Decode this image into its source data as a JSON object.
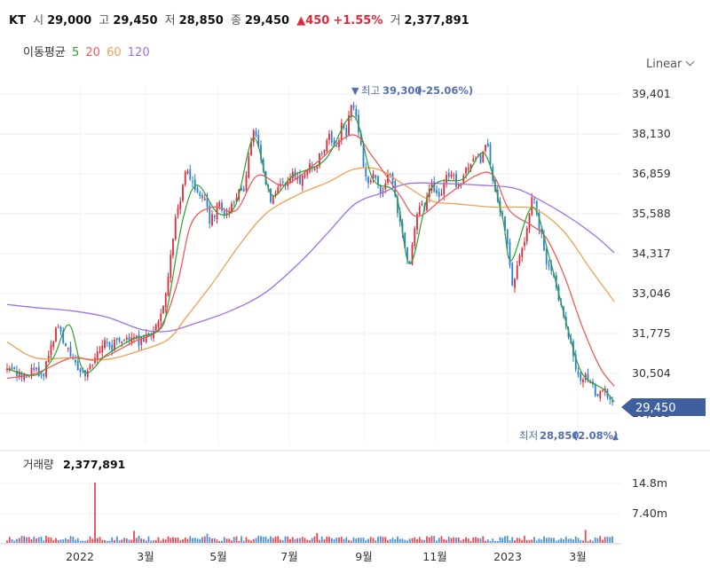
{
  "header": {
    "symbol": "KT",
    "open_label": "시",
    "open": "29,000",
    "high_label": "고",
    "high": "29,450",
    "low_label": "저",
    "low": "28,850",
    "close_label": "종",
    "close": "29,450",
    "change": "▲450",
    "change_pct": "+1.55%",
    "volume_label": "거",
    "volume": "2,377,891"
  },
  "moving_average": {
    "label": "이동평균",
    "periods": [
      {
        "value": "5",
        "color": "#2ca02c"
      },
      {
        "value": "20",
        "color": "#ef5a5a"
      },
      {
        "value": "60",
        "color": "#f0a050"
      },
      {
        "value": "120",
        "color": "#a070e8"
      }
    ]
  },
  "scale_selector": "Linear",
  "colors": {
    "up": "#e0293a",
    "down": "#2a7fd4",
    "badge": "#3f5f9f",
    "annotation": "#5470b0"
  },
  "chart_data": {
    "type": "candlestick",
    "x_ticks": [
      "2022",
      "3월",
      "5월",
      "7월",
      "9월",
      "11월",
      "2023",
      "3월"
    ],
    "y_ticks": [
      "39,401",
      "38,130",
      "36,859",
      "35,588",
      "34,317",
      "33,046",
      "31,775",
      "30,504",
      "29,233"
    ],
    "ylim": [
      29233,
      39401
    ],
    "close_marker": "29,450",
    "high_annotation": {
      "label": "최고",
      "value": "39,300",
      "pct": "(-25.06%)"
    },
    "low_annotation": {
      "label": "최저",
      "value": "28,850",
      "pct": "(2.08%)"
    },
    "close_trend": [
      [
        0,
        30650
      ],
      [
        6,
        30500
      ],
      [
        12,
        30800
      ],
      [
        18,
        30550
      ],
      [
        24,
        30400
      ],
      [
        30,
        30350
      ],
      [
        36,
        30700
      ],
      [
        42,
        30600
      ],
      [
        48,
        30300
      ],
      [
        52,
        30850
      ],
      [
        58,
        31400
      ],
      [
        62,
        31800
      ],
      [
        66,
        32100
      ],
      [
        72,
        31500
      ],
      [
        78,
        31200
      ],
      [
        84,
        30800
      ],
      [
        90,
        30500
      ],
      [
        96,
        30400
      ],
      [
        102,
        30650
      ],
      [
        108,
        31000
      ],
      [
        114,
        31300
      ],
      [
        120,
        31600
      ],
      [
        126,
        31200
      ],
      [
        132,
        31700
      ],
      [
        138,
        31450
      ],
      [
        144,
        31600
      ],
      [
        150,
        31750
      ],
      [
        156,
        31500
      ],
      [
        162,
        31600
      ],
      [
        168,
        31700
      ],
      [
        174,
        31800
      ],
      [
        180,
        32300
      ],
      [
        186,
        32900
      ],
      [
        190,
        33800
      ],
      [
        194,
        34600
      ],
      [
        198,
        35500
      ],
      [
        202,
        35800
      ],
      [
        206,
        36600
      ],
      [
        210,
        36900
      ],
      [
        214,
        36700
      ],
      [
        218,
        36400
      ],
      [
        222,
        36200
      ],
      [
        226,
        36000
      ],
      [
        230,
        36300
      ],
      [
        236,
        35300
      ],
      [
        242,
        35600
      ],
      [
        248,
        35900
      ],
      [
        254,
        35500
      ],
      [
        260,
        35800
      ],
      [
        266,
        36100
      ],
      [
        270,
        36400
      ],
      [
        274,
        36100
      ],
      [
        278,
        36900
      ],
      [
        282,
        37700
      ],
      [
        286,
        38300
      ],
      [
        290,
        37900
      ],
      [
        294,
        37400
      ],
      [
        298,
        36800
      ],
      [
        302,
        36300
      ],
      [
        306,
        36000
      ],
      [
        312,
        36300
      ],
      [
        318,
        36700
      ],
      [
        324,
        36500
      ],
      [
        330,
        36900
      ],
      [
        336,
        36600
      ],
      [
        342,
        36800
      ],
      [
        348,
        37100
      ],
      [
        354,
        37000
      ],
      [
        360,
        37400
      ],
      [
        366,
        37600
      ],
      [
        370,
        38100
      ],
      [
        374,
        37800
      ],
      [
        378,
        37800
      ],
      [
        382,
        37900
      ],
      [
        386,
        38600
      ],
      [
        390,
        38000
      ],
      [
        394,
        39000
      ],
      [
        398,
        39100
      ],
      [
        402,
        38500
      ],
      [
        406,
        37800
      ],
      [
        410,
        37100
      ],
      [
        414,
        36500
      ],
      [
        418,
        36700
      ],
      [
        422,
        37000
      ],
      [
        426,
        36500
      ],
      [
        430,
        36200
      ],
      [
        434,
        36500
      ],
      [
        438,
        36800
      ],
      [
        442,
        36600
      ],
      [
        446,
        36000
      ],
      [
        450,
        35400
      ],
      [
        454,
        35000
      ],
      [
        458,
        34200
      ],
      [
        462,
        34000
      ],
      [
        466,
        35000
      ],
      [
        470,
        35700
      ],
      [
        474,
        35900
      ],
      [
        478,
        35700
      ],
      [
        482,
        36300
      ],
      [
        486,
        36600
      ],
      [
        490,
        36300
      ],
      [
        494,
        36000
      ],
      [
        498,
        36400
      ],
      [
        502,
        36800
      ],
      [
        506,
        36700
      ],
      [
        510,
        36900
      ],
      [
        514,
        36500
      ],
      [
        518,
        36400
      ],
      [
        522,
        36700
      ],
      [
        526,
        37000
      ],
      [
        530,
        37200
      ],
      [
        534,
        37500
      ],
      [
        538,
        37400
      ],
      [
        542,
        37300
      ],
      [
        546,
        37700
      ],
      [
        550,
        37600
      ],
      [
        554,
        37000
      ],
      [
        558,
        36200
      ],
      [
        562,
        35800
      ],
      [
        566,
        35600
      ],
      [
        570,
        35000
      ],
      [
        574,
        34300
      ],
      [
        576,
        33200
      ],
      [
        580,
        33600
      ],
      [
        584,
        34000
      ],
      [
        588,
        34600
      ],
      [
        592,
        34800
      ],
      [
        596,
        35400
      ],
      [
        600,
        36200
      ],
      [
        604,
        35700
      ],
      [
        608,
        35100
      ],
      [
        612,
        34700
      ],
      [
        616,
        34000
      ],
      [
        620,
        33800
      ],
      [
        624,
        33600
      ],
      [
        628,
        33100
      ],
      [
        632,
        32700
      ],
      [
        636,
        32300
      ],
      [
        640,
        31700
      ],
      [
        644,
        31300
      ],
      [
        648,
        30700
      ],
      [
        652,
        30400
      ],
      [
        656,
        30200
      ],
      [
        660,
        30450
      ],
      [
        664,
        30300
      ],
      [
        668,
        30100
      ],
      [
        672,
        29700
      ],
      [
        676,
        29800
      ],
      [
        680,
        30000
      ],
      [
        684,
        29900
      ],
      [
        688,
        29600
      ],
      [
        692,
        29450
      ]
    ],
    "ma5": [
      [
        8,
        30650
      ],
      [
        40,
        30450
      ],
      [
        60,
        31000
      ],
      [
        78,
        32050
      ],
      [
        95,
        30550
      ],
      [
        120,
        31100
      ],
      [
        150,
        31600
      ],
      [
        180,
        31900
      ],
      [
        190,
        32800
      ],
      [
        206,
        35400
      ],
      [
        222,
        36500
      ],
      [
        246,
        35600
      ],
      [
        266,
        35900
      ],
      [
        286,
        38000
      ],
      [
        306,
        36200
      ],
      [
        330,
        36800
      ],
      [
        366,
        37300
      ],
      [
        398,
        38700
      ],
      [
        420,
        36700
      ],
      [
        446,
        36200
      ],
      [
        462,
        34000
      ],
      [
        486,
        36400
      ],
      [
        522,
        36700
      ],
      [
        546,
        37500
      ],
      [
        566,
        35500
      ],
      [
        576,
        34100
      ],
      [
        600,
        35800
      ],
      [
        620,
        34100
      ],
      [
        640,
        31900
      ],
      [
        656,
        30500
      ],
      [
        680,
        30000
      ],
      [
        692,
        29600
      ]
    ],
    "ma20": [
      [
        8,
        30350
      ],
      [
        40,
        30500
      ],
      [
        80,
        31000
      ],
      [
        110,
        30950
      ],
      [
        150,
        31500
      ],
      [
        180,
        31950
      ],
      [
        200,
        33400
      ],
      [
        216,
        35300
      ],
      [
        240,
        35800
      ],
      [
        266,
        35700
      ],
      [
        290,
        36800
      ],
      [
        320,
        36500
      ],
      [
        356,
        37200
      ],
      [
        396,
        38100
      ],
      [
        420,
        37400
      ],
      [
        450,
        36200
      ],
      [
        470,
        35500
      ],
      [
        500,
        36100
      ],
      [
        536,
        36800
      ],
      [
        556,
        36800
      ],
      [
        574,
        35700
      ],
      [
        600,
        35200
      ],
      [
        616,
        34800
      ],
      [
        636,
        33600
      ],
      [
        656,
        32000
      ],
      [
        676,
        30700
      ],
      [
        692,
        30100
      ]
    ],
    "ma60": [
      [
        8,
        31500
      ],
      [
        40,
        31000
      ],
      [
        80,
        31000
      ],
      [
        120,
        30950
      ],
      [
        160,
        31250
      ],
      [
        190,
        31600
      ],
      [
        210,
        32300
      ],
      [
        240,
        33400
      ],
      [
        270,
        34600
      ],
      [
        300,
        35600
      ],
      [
        336,
        36200
      ],
      [
        370,
        36600
      ],
      [
        398,
        37000
      ],
      [
        426,
        37000
      ],
      [
        456,
        36500
      ],
      [
        486,
        36000
      ],
      [
        516,
        35900
      ],
      [
        556,
        35800
      ],
      [
        586,
        35800
      ],
      [
        606,
        35700
      ],
      [
        636,
        35000
      ],
      [
        666,
        33800
      ],
      [
        692,
        32800
      ]
    ],
    "ma120": [
      [
        8,
        32700
      ],
      [
        40,
        32600
      ],
      [
        80,
        32500
      ],
      [
        120,
        32300
      ],
      [
        160,
        31900
      ],
      [
        190,
        31850
      ],
      [
        220,
        32100
      ],
      [
        260,
        32500
      ],
      [
        300,
        33100
      ],
      [
        340,
        34100
      ],
      [
        370,
        35000
      ],
      [
        400,
        35900
      ],
      [
        430,
        36250
      ],
      [
        460,
        36550
      ],
      [
        500,
        36550
      ],
      [
        540,
        36500
      ],
      [
        580,
        36400
      ],
      [
        610,
        36000
      ],
      [
        640,
        35500
      ],
      [
        670,
        34900
      ],
      [
        692,
        34350
      ]
    ],
    "volume": {
      "label": "거래량",
      "value": "2,377,891",
      "y_ticks": [
        "14.8m",
        "7.40m"
      ]
    }
  }
}
